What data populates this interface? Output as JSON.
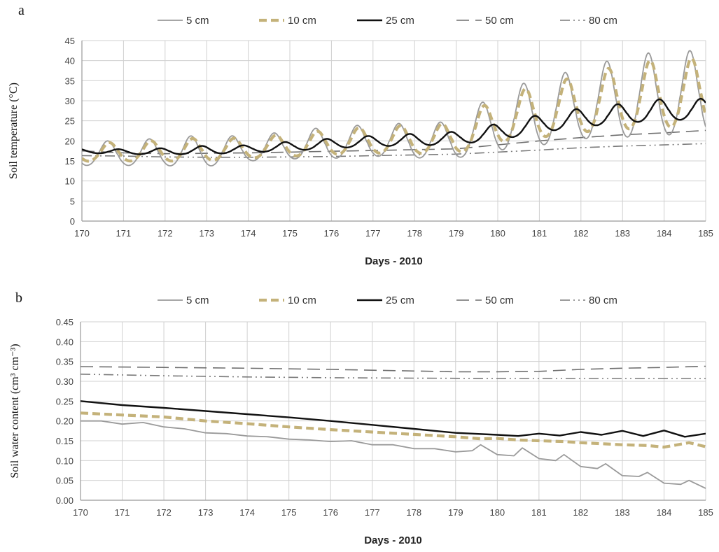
{
  "panels": [
    {
      "letter": "a",
      "xlabel": "Days - 2010",
      "ylabel": "Soil temperature (°C)",
      "ylabel_sup": ""
    },
    {
      "letter": "b",
      "xlabel": "Days - 2010",
      "ylabel": "Soil water content (cm³ cm⁻³)"
    }
  ],
  "colors": {
    "s5": "#9a9a9a",
    "s10": "#c4b27a",
    "s25": "#111111",
    "s50": "#6f6f6f",
    "s80": "#7a7a7a",
    "grid": "#d0d0d0"
  },
  "chart_data": [
    {
      "type": "line",
      "title": "",
      "xlabel": "Days - 2010",
      "ylabel": "Soil temperature (°C)",
      "xlim": [
        170,
        185
      ],
      "ylim": [
        0,
        45
      ],
      "yticks": [
        0,
        5,
        10,
        15,
        20,
        25,
        30,
        35,
        40,
        45
      ],
      "ytick_labels": [
        "0",
        "5",
        "10",
        "15",
        "20",
        "25",
        "30",
        "35",
        "40",
        "45"
      ],
      "xticks": [
        170,
        171,
        172,
        173,
        174,
        175,
        176,
        177,
        178,
        179,
        180,
        181,
        182,
        183,
        184,
        185
      ],
      "grid": true,
      "legend": "top-center",
      "series": [
        {
          "name": "5 cm",
          "style": "solid-thin",
          "color_key": "s5",
          "mean": [
            16.5,
            16.5,
            16.8,
            17.0,
            17.6,
            18.5,
            19.0,
            19.6,
            19.5,
            19.6,
            24.0,
            26.0,
            28.0,
            29.5,
            30.5
          ],
          "amp": [
            3.5,
            3.5,
            4.0,
            4.5,
            3.5,
            4.0,
            4.5,
            4.5,
            5.0,
            5.2,
            8.5,
            9.5,
            10.0,
            11.5,
            12.0
          ],
          "peak_phase": 0.62
        },
        {
          "name": "10 cm",
          "style": "dashed-thick",
          "color_key": "s10",
          "mean": [
            16.8,
            17.0,
            17.2,
            17.5,
            17.8,
            18.6,
            19.2,
            19.8,
            19.9,
            20.1,
            24.5,
            26.5,
            28.2,
            29.8,
            30.8
          ],
          "amp": [
            2.5,
            2.7,
            3.0,
            3.3,
            2.8,
            3.2,
            3.5,
            3.8,
            4.0,
            4.3,
            6.5,
            7.5,
            8.0,
            9.2,
            9.8
          ],
          "peak_phase": 0.66
        },
        {
          "name": "25 cm",
          "style": "solid-thick",
          "color_key": "s25",
          "mean": [
            17.5,
            17.2,
            17.3,
            17.6,
            17.9,
            18.5,
            19.2,
            19.8,
            20.1,
            20.5,
            22.0,
            24.0,
            25.5,
            26.5,
            27.5
          ],
          "amp": [
            0.6,
            0.7,
            0.9,
            1.2,
            1.0,
            1.3,
            1.4,
            1.5,
            1.7,
            1.8,
            2.3,
            2.5,
            2.6,
            2.8,
            3.0
          ],
          "peak_phase": 0.88
        },
        {
          "name": "50 cm",
          "style": "long-dash",
          "color_key": "s50",
          "values": [
            [
              170,
              17.5
            ],
            [
              171,
              17.0
            ],
            [
              172,
              16.8
            ],
            [
              173,
              16.9
            ],
            [
              174,
              17.0
            ],
            [
              175,
              17.2
            ],
            [
              176,
              17.4
            ],
            [
              177,
              17.6
            ],
            [
              178,
              17.8
            ],
            [
              179,
              18.0
            ],
            [
              180,
              19.0
            ],
            [
              181,
              20.0
            ],
            [
              182,
              20.8
            ],
            [
              183,
              21.5
            ],
            [
              184,
              22.0
            ],
            [
              185,
              22.6
            ]
          ]
        },
        {
          "name": "80 cm",
          "style": "dash-dot-dot",
          "color_key": "s80",
          "values": [
            [
              170,
              16.3
            ],
            [
              171,
              16.2
            ],
            [
              172,
              16.0
            ],
            [
              173,
              15.9
            ],
            [
              174,
              15.9
            ],
            [
              175,
              16.0
            ],
            [
              176,
              16.1
            ],
            [
              177,
              16.3
            ],
            [
              178,
              16.5
            ],
            [
              179,
              16.7
            ],
            [
              180,
              17.2
            ],
            [
              181,
              17.7
            ],
            [
              182,
              18.3
            ],
            [
              183,
              18.7
            ],
            [
              184,
              19.0
            ],
            [
              185,
              19.3
            ]
          ]
        }
      ]
    },
    {
      "type": "line",
      "title": "",
      "xlabel": "Days - 2010",
      "ylabel": "Soil water content (cm³ cm⁻³)",
      "xlim": [
        170,
        185
      ],
      "ylim": [
        0,
        0.45
      ],
      "yticks": [
        0,
        0.05,
        0.1,
        0.15,
        0.2,
        0.25,
        0.3,
        0.35,
        0.4,
        0.45
      ],
      "ytick_labels": [
        "0.00",
        "0.05",
        "0.10",
        "0.15",
        "0.20",
        "0.25",
        "0.30",
        "0.35",
        "0.40",
        "0.45"
      ],
      "xticks": [
        170,
        171,
        172,
        173,
        174,
        175,
        176,
        177,
        178,
        179,
        180,
        181,
        182,
        183,
        184,
        185
      ],
      "grid": true,
      "legend": "top-center",
      "series": [
        {
          "name": "5 cm",
          "style": "solid-thin",
          "color_key": "s5",
          "values": [
            [
              170,
              0.2
            ],
            [
              170.5,
              0.2
            ],
            [
              171,
              0.192
            ],
            [
              171.5,
              0.196
            ],
            [
              172,
              0.185
            ],
            [
              172.5,
              0.18
            ],
            [
              173,
              0.17
            ],
            [
              173.5,
              0.168
            ],
            [
              174,
              0.162
            ],
            [
              174.5,
              0.16
            ],
            [
              175,
              0.154
            ],
            [
              175.5,
              0.152
            ],
            [
              176,
              0.148
            ],
            [
              176.5,
              0.15
            ],
            [
              177,
              0.14
            ],
            [
              177.5,
              0.14
            ],
            [
              178,
              0.13
            ],
            [
              178.5,
              0.13
            ],
            [
              179,
              0.122
            ],
            [
              179.4,
              0.125
            ],
            [
              179.6,
              0.14
            ],
            [
              180,
              0.115
            ],
            [
              180.4,
              0.112
            ],
            [
              180.6,
              0.132
            ],
            [
              181,
              0.105
            ],
            [
              181.4,
              0.1
            ],
            [
              181.6,
              0.115
            ],
            [
              182,
              0.085
            ],
            [
              182.4,
              0.08
            ],
            [
              182.6,
              0.092
            ],
            [
              183,
              0.062
            ],
            [
              183.4,
              0.06
            ],
            [
              183.6,
              0.07
            ],
            [
              184,
              0.043
            ],
            [
              184.4,
              0.04
            ],
            [
              184.6,
              0.05
            ],
            [
              185,
              0.03
            ]
          ]
        },
        {
          "name": "10 cm",
          "style": "dashed-thick",
          "color_key": "s10",
          "values": [
            [
              170,
              0.22
            ],
            [
              171,
              0.215
            ],
            [
              172,
              0.21
            ],
            [
              173,
              0.2
            ],
            [
              174,
              0.193
            ],
            [
              175,
              0.185
            ],
            [
              176,
              0.178
            ],
            [
              177,
              0.172
            ],
            [
              178,
              0.166
            ],
            [
              179,
              0.16
            ],
            [
              179.6,
              0.155
            ],
            [
              180,
              0.156
            ],
            [
              180.5,
              0.152
            ],
            [
              181,
              0.15
            ],
            [
              181.6,
              0.148
            ],
            [
              182,
              0.145
            ],
            [
              182.6,
              0.142
            ],
            [
              183,
              0.14
            ],
            [
              183.6,
              0.138
            ],
            [
              184,
              0.134
            ],
            [
              184.6,
              0.145
            ],
            [
              185,
              0.135
            ]
          ]
        },
        {
          "name": "25 cm",
          "style": "solid-thick",
          "color_key": "s25",
          "values": [
            [
              170,
              0.25
            ],
            [
              171,
              0.24
            ],
            [
              172,
              0.233
            ],
            [
              173,
              0.225
            ],
            [
              174,
              0.217
            ],
            [
              175,
              0.209
            ],
            [
              176,
              0.2
            ],
            [
              177,
              0.19
            ],
            [
              178,
              0.18
            ],
            [
              179,
              0.17
            ],
            [
              180,
              0.165
            ],
            [
              180.5,
              0.162
            ],
            [
              181,
              0.168
            ],
            [
              181.5,
              0.163
            ],
            [
              182,
              0.172
            ],
            [
              182.5,
              0.165
            ],
            [
              183,
              0.175
            ],
            [
              183.5,
              0.162
            ],
            [
              184,
              0.176
            ],
            [
              184.5,
              0.16
            ],
            [
              185,
              0.168
            ]
          ]
        },
        {
          "name": "50 cm",
          "style": "long-dash",
          "color_key": "s50",
          "values": [
            [
              170,
              0.337
            ],
            [
              172,
              0.335
            ],
            [
              174,
              0.333
            ],
            [
              176,
              0.33
            ],
            [
              178,
              0.326
            ],
            [
              179,
              0.324
            ],
            [
              180,
              0.324
            ],
            [
              181,
              0.325
            ],
            [
              182,
              0.33
            ],
            [
              183,
              0.333
            ],
            [
              184,
              0.335
            ],
            [
              185,
              0.338
            ]
          ]
        },
        {
          "name": "80 cm",
          "style": "dash-dot-dot",
          "color_key": "s80",
          "values": [
            [
              170,
              0.318
            ],
            [
              172,
              0.314
            ],
            [
              174,
              0.311
            ],
            [
              176,
              0.309
            ],
            [
              178,
              0.308
            ],
            [
              180,
              0.307
            ],
            [
              182,
              0.307
            ],
            [
              184,
              0.307
            ],
            [
              185,
              0.307
            ]
          ]
        }
      ]
    }
  ]
}
